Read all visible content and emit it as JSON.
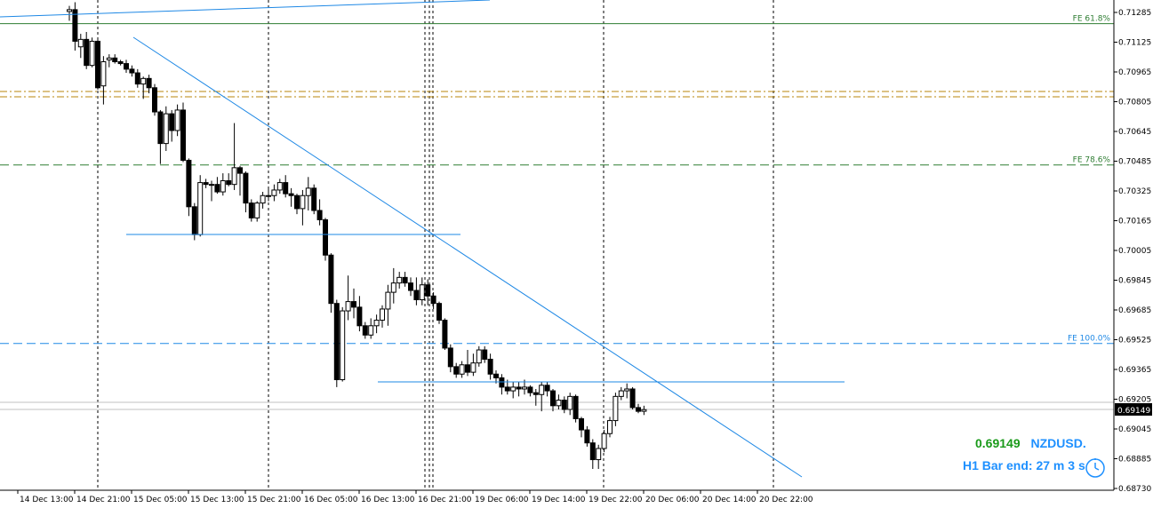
{
  "chart_data": {
    "type": "candlestick",
    "symbol": "NZDUSD.",
    "current_price": "0.69149",
    "price_label": "0.69149",
    "bar_end_text": "H1 Bar end: 27 m 3 s",
    "yticks": [
      "0.71285",
      "0.71125",
      "0.70965",
      "0.70805",
      "0.70645",
      "0.70485",
      "0.70325",
      "0.70165",
      "0.70005",
      "0.69845",
      "0.69685",
      "0.69525",
      "0.69365",
      "0.69205",
      "0.69045",
      "0.68885",
      "0.68730"
    ],
    "xticks": [
      "14 Dec 13:00",
      "14 Dec 21:00",
      "15 Dec 05:00",
      "15 Dec 13:00",
      "15 Dec 21:00",
      "16 Dec 05:00",
      "16 Dec 13:00",
      "16 Dec 21:00",
      "19 Dec 06:00",
      "19 Dec 14:00",
      "19 Dec 22:00",
      "20 Dec 06:00",
      "20 Dec 14:00",
      "20 Dec 22:00"
    ],
    "fe_levels": [
      {
        "label": "FE 61.8%",
        "price": 0.71225,
        "color": "#2e7d32"
      },
      {
        "label": "FE 78.6%",
        "price": 0.70465,
        "color": "#2e7d32"
      },
      {
        "label": "FE 100.0%",
        "price": 0.69505,
        "color": "#1e88e5"
      }
    ],
    "colors": {
      "bull": "#ffffff",
      "bear": "#000000",
      "trendline": "#1e88e5",
      "grid": "#000000"
    },
    "candles": [
      [
        0.7129,
        0.7132,
        0.7124,
        0.713
      ],
      [
        0.713,
        0.7134,
        0.7108,
        0.7113
      ],
      [
        0.711,
        0.7117,
        0.7104,
        0.7114
      ],
      [
        0.7114,
        0.7118,
        0.7098,
        0.71
      ],
      [
        0.71,
        0.7115,
        0.7099,
        0.7113
      ],
      [
        0.7113,
        0.7114,
        0.7087,
        0.7088
      ],
      [
        0.7089,
        0.7105,
        0.7079,
        0.7102
      ],
      [
        0.7103,
        0.7106,
        0.7099,
        0.7104
      ],
      [
        0.7104,
        0.7106,
        0.7101,
        0.7102
      ],
      [
        0.7102,
        0.7103,
        0.71,
        0.7101
      ],
      [
        0.7101,
        0.7103,
        0.7096,
        0.7098
      ],
      [
        0.7098,
        0.71,
        0.7094,
        0.7096
      ],
      [
        0.7096,
        0.7098,
        0.7088,
        0.709
      ],
      [
        0.709,
        0.7094,
        0.7082,
        0.7093
      ],
      [
        0.7093,
        0.7095,
        0.7085,
        0.7088
      ],
      [
        0.7088,
        0.709,
        0.7073,
        0.7075
      ],
      [
        0.7075,
        0.7076,
        0.7047,
        0.7058
      ],
      [
        0.7058,
        0.7078,
        0.7054,
        0.7074
      ],
      [
        0.7074,
        0.7076,
        0.7059,
        0.7065
      ],
      [
        0.7065,
        0.7079,
        0.7062,
        0.7076
      ],
      [
        0.7076,
        0.708,
        0.7048,
        0.7049
      ],
      [
        0.7049,
        0.705,
        0.7019,
        0.7024
      ],
      [
        0.7024,
        0.7026,
        0.7006,
        0.7009
      ],
      [
        0.7009,
        0.7041,
        0.7008,
        0.7037
      ],
      [
        0.7037,
        0.7039,
        0.7034,
        0.7036
      ],
      [
        0.7036,
        0.7038,
        0.7027,
        0.7036
      ],
      [
        0.7036,
        0.704,
        0.7031,
        0.7032
      ],
      [
        0.7032,
        0.7042,
        0.703,
        0.7038
      ],
      [
        0.7038,
        0.7042,
        0.7035,
        0.7036
      ],
      [
        0.7036,
        0.7069,
        0.7033,
        0.7045
      ],
      [
        0.7045,
        0.7046,
        0.703,
        0.7042
      ],
      [
        0.7042,
        0.7043,
        0.7021,
        0.7026
      ],
      [
        0.7026,
        0.7028,
        0.7016,
        0.7018
      ],
      [
        0.7018,
        0.7027,
        0.7016,
        0.7026
      ],
      [
        0.7026,
        0.7032,
        0.7023,
        0.703
      ],
      [
        0.703,
        0.7034,
        0.7027,
        0.703
      ],
      [
        0.703,
        0.7036,
        0.7027,
        0.7033
      ],
      [
        0.7033,
        0.7039,
        0.7031,
        0.7037
      ],
      [
        0.7037,
        0.7041,
        0.7029,
        0.7031
      ],
      [
        0.7031,
        0.7034,
        0.7024,
        0.703
      ],
      [
        0.703,
        0.7031,
        0.702,
        0.7023
      ],
      [
        0.7023,
        0.7033,
        0.7014,
        0.703
      ],
      [
        0.703,
        0.704,
        0.7022,
        0.7034
      ],
      [
        0.7034,
        0.7036,
        0.702,
        0.7022
      ],
      [
        0.7022,
        0.7028,
        0.7014,
        0.7017
      ],
      [
        0.7017,
        0.7018,
        0.6995,
        0.6998
      ],
      [
        0.6998,
        0.6999,
        0.6967,
        0.6972
      ],
      [
        0.6972,
        0.6974,
        0.6927,
        0.6931
      ],
      [
        0.6931,
        0.697,
        0.693,
        0.6968
      ],
      [
        0.6968,
        0.6987,
        0.6963,
        0.6973
      ],
      [
        0.6973,
        0.698,
        0.6964,
        0.697
      ],
      [
        0.697,
        0.6976,
        0.6957,
        0.696
      ],
      [
        0.696,
        0.6962,
        0.6953,
        0.6955
      ],
      [
        0.6955,
        0.6964,
        0.6953,
        0.696
      ],
      [
        0.696,
        0.6966,
        0.6956,
        0.6963
      ],
      [
        0.6963,
        0.6971,
        0.6959,
        0.6969
      ],
      [
        0.6969,
        0.6982,
        0.696,
        0.6978
      ],
      [
        0.6978,
        0.6991,
        0.6972,
        0.6983
      ],
      [
        0.6983,
        0.6989,
        0.698,
        0.6986
      ],
      [
        0.6986,
        0.6989,
        0.6981,
        0.6983
      ],
      [
        0.6983,
        0.6986,
        0.6976,
        0.6979
      ],
      [
        0.6979,
        0.6986,
        0.6971,
        0.6974
      ],
      [
        0.6974,
        0.6986,
        0.6971,
        0.6982
      ],
      [
        0.6982,
        0.6985,
        0.6971,
        0.6976
      ],
      [
        0.6976,
        0.6978,
        0.6969,
        0.6972
      ],
      [
        0.6972,
        0.6973,
        0.6961,
        0.6963
      ],
      [
        0.6963,
        0.6964,
        0.6947,
        0.6948
      ],
      [
        0.6948,
        0.695,
        0.6935,
        0.6938
      ],
      [
        0.6938,
        0.694,
        0.6932,
        0.6934
      ],
      [
        0.6934,
        0.6941,
        0.6932,
        0.6939
      ],
      [
        0.6939,
        0.6947,
        0.6933,
        0.6935
      ],
      [
        0.6935,
        0.6945,
        0.6933,
        0.694
      ],
      [
        0.694,
        0.6949,
        0.6938,
        0.6947
      ],
      [
        0.6947,
        0.6949,
        0.694,
        0.6942
      ],
      [
        0.6942,
        0.6945,
        0.6931,
        0.6934
      ],
      [
        0.6934,
        0.6936,
        0.6929,
        0.6932
      ],
      [
        0.6932,
        0.6934,
        0.6923,
        0.6927
      ],
      [
        0.6927,
        0.6931,
        0.6923,
        0.6925
      ],
      [
        0.6925,
        0.693,
        0.6921,
        0.6927
      ],
      [
        0.6927,
        0.693,
        0.6922,
        0.6926
      ],
      [
        0.6926,
        0.6931,
        0.6923,
        0.6927
      ],
      [
        0.6927,
        0.6928,
        0.6922,
        0.6924
      ],
      [
        0.6924,
        0.6926,
        0.6917,
        0.6923
      ],
      [
        0.6923,
        0.693,
        0.6914,
        0.6928
      ],
      [
        0.6928,
        0.693,
        0.6922,
        0.6925
      ],
      [
        0.6925,
        0.6926,
        0.6914,
        0.6917
      ],
      [
        0.6917,
        0.6923,
        0.6915,
        0.692
      ],
      [
        0.692,
        0.6922,
        0.6913,
        0.6915
      ],
      [
        0.6915,
        0.6924,
        0.6912,
        0.6922
      ],
      [
        0.6922,
        0.6923,
        0.6908,
        0.691
      ],
      [
        0.691,
        0.6911,
        0.69,
        0.6904
      ],
      [
        0.6904,
        0.6906,
        0.6895,
        0.6897
      ],
      [
        0.6897,
        0.6899,
        0.6883,
        0.6888
      ],
      [
        0.6888,
        0.6896,
        0.6883,
        0.6894
      ],
      [
        0.6894,
        0.6904,
        0.6892,
        0.6902
      ],
      [
        0.6902,
        0.6911,
        0.69,
        0.6909
      ],
      [
        0.6909,
        0.6924,
        0.6906,
        0.6922
      ],
      [
        0.6922,
        0.6927,
        0.692,
        0.6925
      ],
      [
        0.6925,
        0.6929,
        0.6921,
        0.6926
      ],
      [
        0.6926,
        0.6927,
        0.6915,
        0.6916
      ],
      [
        0.6916,
        0.6918,
        0.6913,
        0.6914
      ],
      [
        0.6914,
        0.6917,
        0.6912,
        0.69149
      ]
    ]
  }
}
